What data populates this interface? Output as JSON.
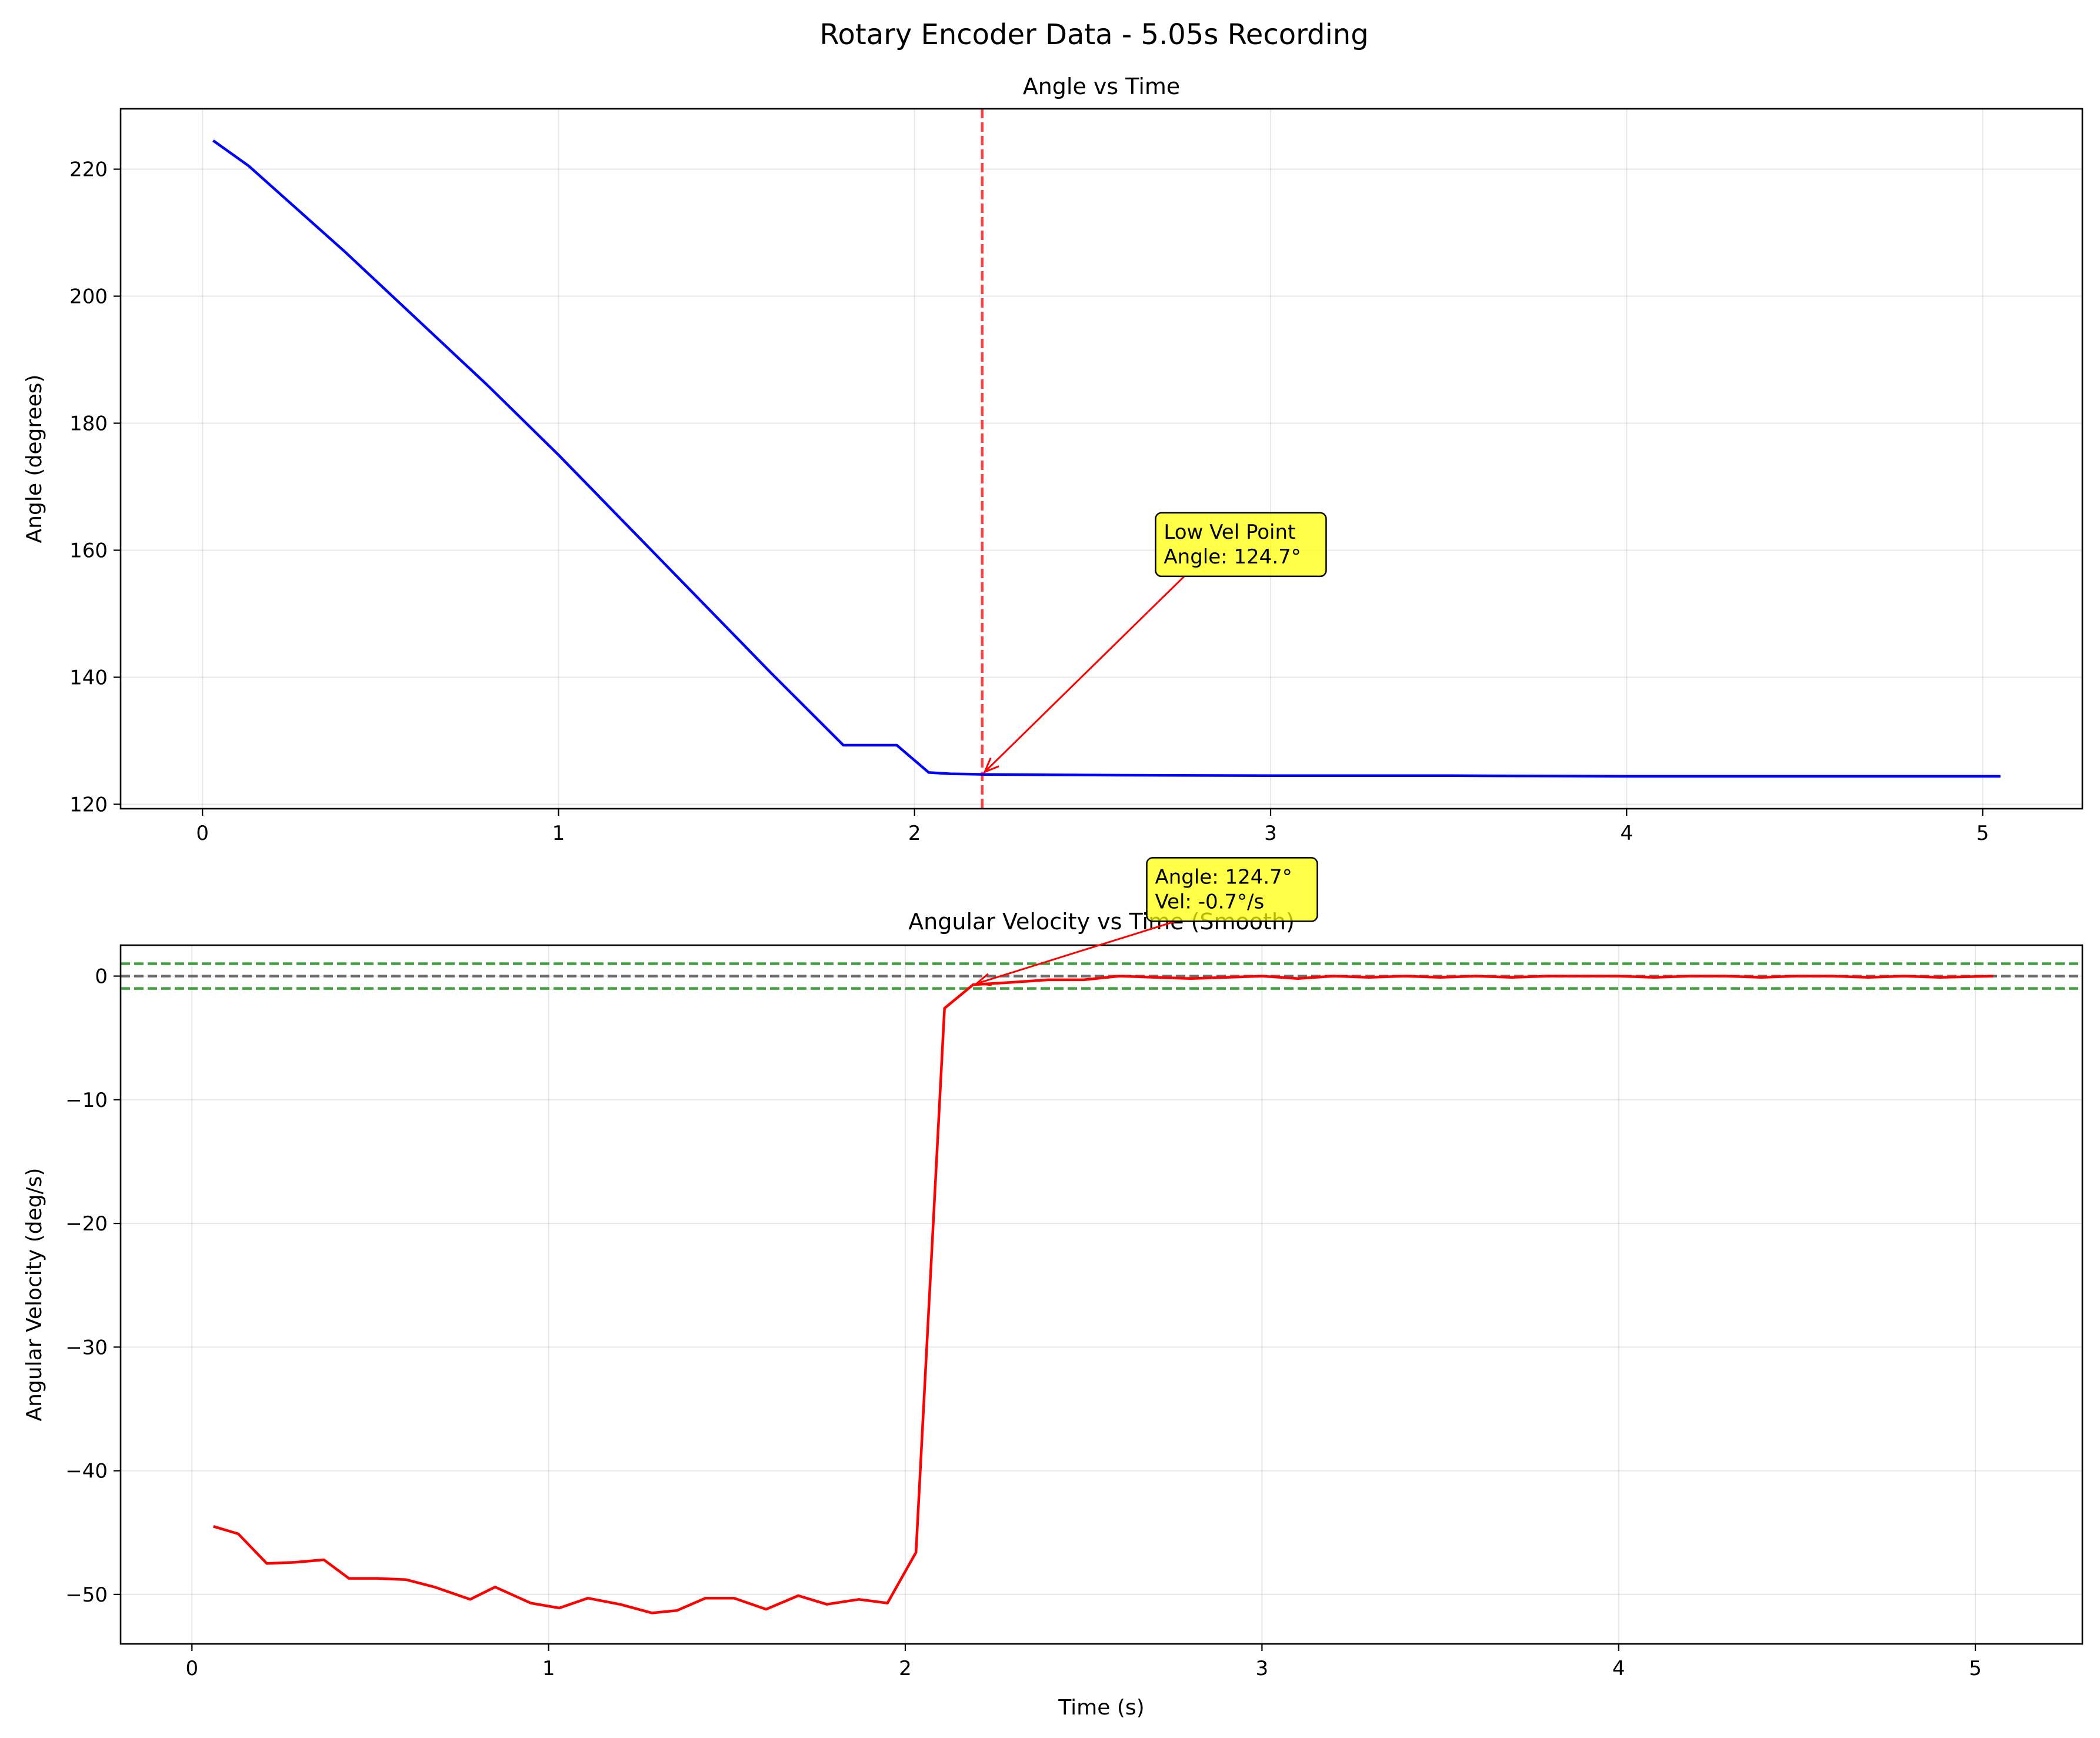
{
  "figure": {
    "suptitle": "Rotary Encoder Data - 5.05s Recording"
  },
  "chart_data": [
    {
      "type": "line",
      "title": "Angle vs Time",
      "xlabel": "",
      "ylabel": "Angle (degrees)",
      "xlim": [
        -0.23,
        5.28
      ],
      "ylim": [
        119.3,
        229.5
      ],
      "xticks": [
        0,
        1,
        2,
        3,
        4,
        5
      ],
      "yticks": [
        120,
        140,
        160,
        180,
        200,
        220
      ],
      "grid": true,
      "series": [
        {
          "color": "#0000ff",
          "x": [
            0.03,
            0.13,
            0.25,
            0.4,
            0.6,
            0.8,
            1.0,
            1.2,
            1.4,
            1.6,
            1.8,
            1.95,
            2.04,
            2.1,
            2.2,
            2.5,
            3.0,
            3.5,
            4.0,
            4.5,
            5.05
          ],
          "y": [
            224.5,
            220.5,
            214.5,
            207.0,
            196.5,
            186.0,
            175.0,
            163.5,
            152.0,
            140.5,
            129.3,
            129.3,
            125.0,
            124.8,
            124.7,
            124.6,
            124.5,
            124.5,
            124.4,
            124.4,
            124.4
          ]
        }
      ],
      "vlines": [
        {
          "x": 2.19,
          "color": "#ff0000",
          "style": "dashed"
        }
      ],
      "annotation": {
        "lines": [
          "Low Vel Point",
          "Angle: 124.7°"
        ],
        "point": [
          2.19,
          124.7
        ],
        "text_pos": [
          2.7,
          157.0
        ],
        "box_color": "#ffff00",
        "arrow_color": "#ff0000"
      }
    },
    {
      "type": "line",
      "title": "Angular Velocity vs Time (Smooth)",
      "xlabel": "Time (s)",
      "ylabel": "Angular Velocity (deg/s)",
      "xlim": [
        -0.2,
        5.3
      ],
      "ylim": [
        -54.0,
        2.5
      ],
      "xticks": [
        0,
        1,
        2,
        3,
        4,
        5
      ],
      "yticks": [
        0,
        -10,
        -20,
        -30,
        -40,
        -50
      ],
      "grid": true,
      "series": [
        {
          "color": "#ff0000",
          "x": [
            0.06,
            0.13,
            0.21,
            0.29,
            0.37,
            0.44,
            0.52,
            0.6,
            0.68,
            0.78,
            0.85,
            0.95,
            1.03,
            1.11,
            1.2,
            1.29,
            1.36,
            1.44,
            1.52,
            1.61,
            1.7,
            1.78,
            1.87,
            1.95,
            2.03,
            2.11,
            2.19,
            2.3,
            2.4,
            2.5,
            2.6,
            2.7,
            2.8,
            2.9,
            3.0,
            3.1,
            3.2,
            3.3,
            3.4,
            3.5,
            3.6,
            3.7,
            3.8,
            3.9,
            4.0,
            4.1,
            4.2,
            4.3,
            4.4,
            4.5,
            4.6,
            4.7,
            4.8,
            4.9,
            5.05
          ],
          "y": [
            -44.5,
            -45.1,
            -47.5,
            -47.4,
            -47.2,
            -48.7,
            -48.7,
            -48.8,
            -49.4,
            -50.4,
            -49.4,
            -50.7,
            -51.1,
            -50.3,
            -50.8,
            -51.5,
            -51.3,
            -50.3,
            -50.3,
            -51.2,
            -50.1,
            -50.8,
            -50.4,
            -50.7,
            -46.6,
            -2.6,
            -0.7,
            -0.5,
            -0.3,
            -0.3,
            0.0,
            -0.1,
            -0.2,
            -0.1,
            0.0,
            -0.2,
            0.0,
            -0.1,
            0.0,
            -0.1,
            0.0,
            -0.1,
            0.0,
            0.0,
            0.0,
            -0.1,
            0.0,
            0.0,
            -0.1,
            0.0,
            0.0,
            -0.1,
            0.0,
            -0.1,
            0.0
          ]
        }
      ],
      "hlines": [
        {
          "y": 1.0,
          "color": "#008000",
          "style": "dashed"
        },
        {
          "y": 0.0,
          "color": "#404040",
          "style": "dashed"
        },
        {
          "y": -1.0,
          "color": "#008000",
          "style": "dashed"
        }
      ],
      "annotation": {
        "lines": [
          "Angle: 124.7°",
          "Vel: -0.7°/s"
        ],
        "point": [
          2.19,
          -0.7
        ],
        "text_pos": [
          2.7,
          5.0
        ],
        "box_color": "#ffff00",
        "arrow_color": "#ff0000"
      }
    }
  ]
}
